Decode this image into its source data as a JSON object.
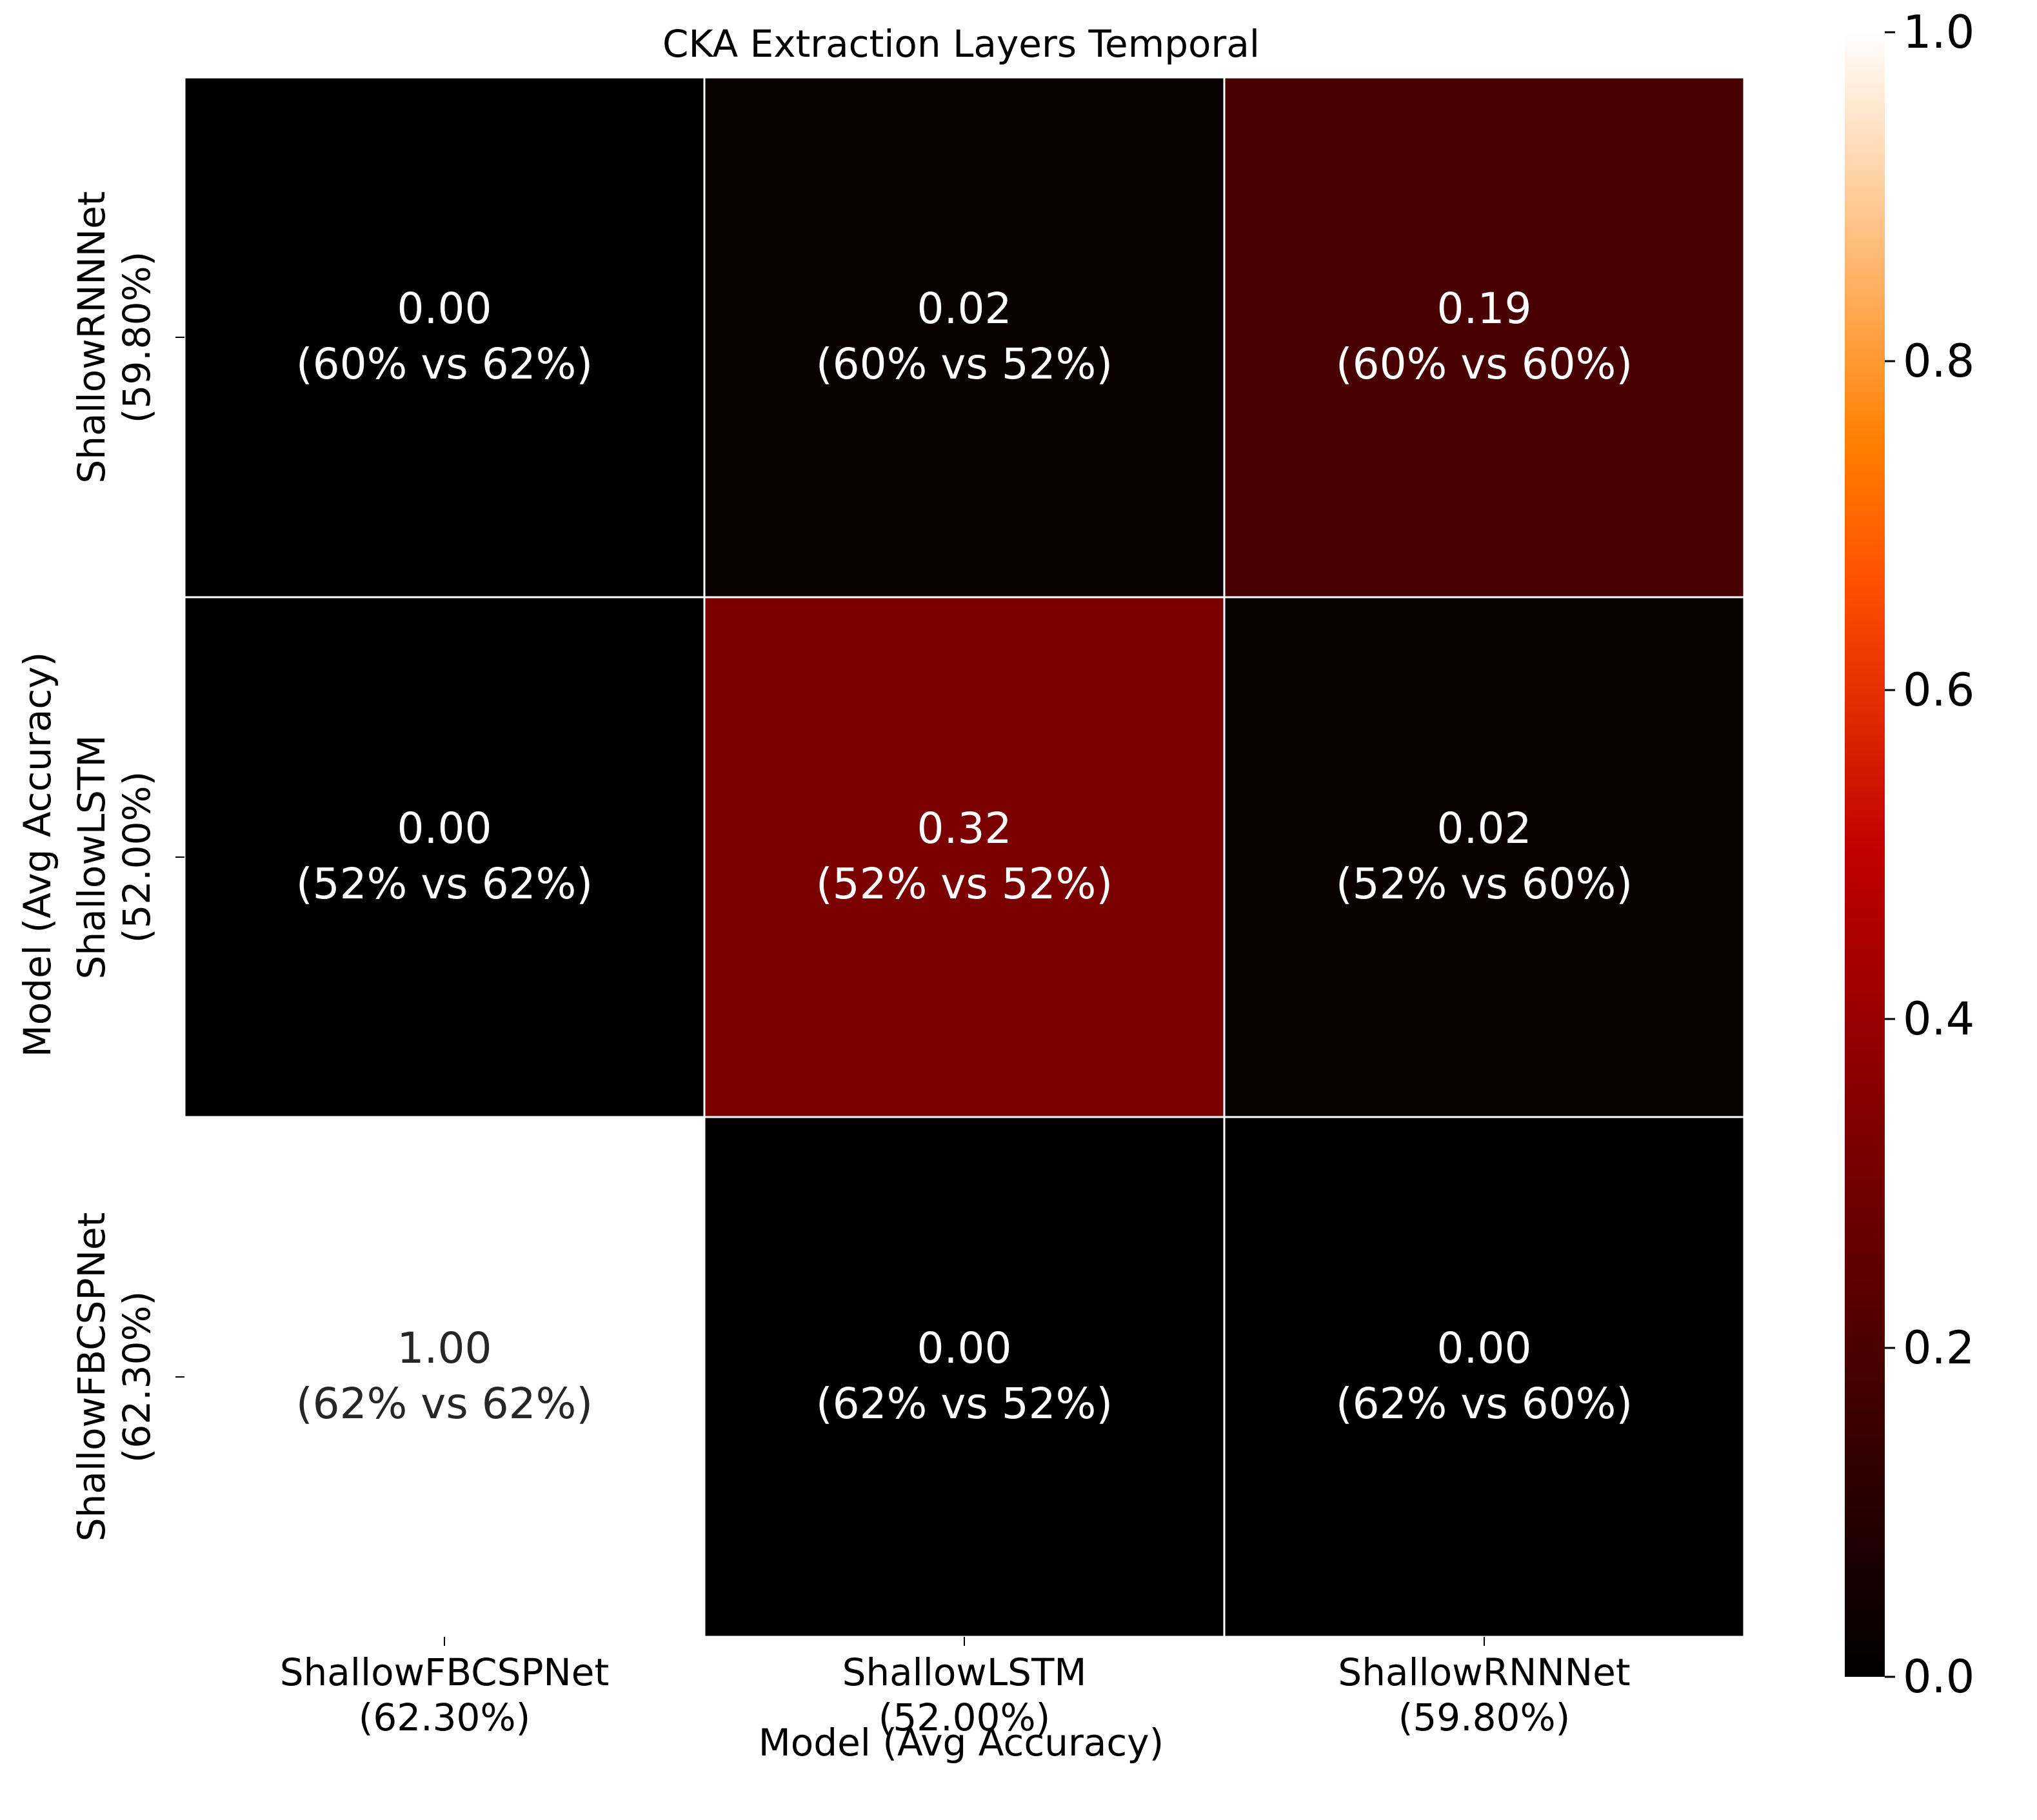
{
  "chart_data": {
    "type": "heatmap",
    "title": "CKA Extraction Layers Temporal",
    "xlabel": "Model (Avg Accuracy)",
    "ylabel": "Model (Avg Accuracy)",
    "x_categories": [
      [
        "ShallowFBCSPNet",
        "(62.30%)"
      ],
      [
        "ShallowLSTM",
        "(52.00%)"
      ],
      [
        "ShallowRNNNet",
        "(59.80%)"
      ]
    ],
    "y_categories": [
      [
        "ShallowRNNNet",
        "(59.80%)"
      ],
      [
        "ShallowLSTM",
        "(52.00%)"
      ],
      [
        "ShallowFBCSPNet",
        "(62.30%)"
      ]
    ],
    "values": [
      [
        0.0,
        0.02,
        0.19
      ],
      [
        0.0,
        0.32,
        0.02
      ],
      [
        1.0,
        0.0,
        0.0
      ]
    ],
    "cell_labels": [
      [
        [
          "0.00",
          "(60% vs 62%)"
        ],
        [
          "0.02",
          "(60% vs 52%)"
        ],
        [
          "0.19",
          "(60% vs 60%)"
        ]
      ],
      [
        [
          "0.00",
          "(52% vs 62%)"
        ],
        [
          "0.32",
          "(52% vs 52%)"
        ],
        [
          "0.02",
          "(52% vs 60%)"
        ]
      ],
      [
        [
          "1.00",
          "(62% vs 62%)"
        ],
        [
          "0.00",
          "(62% vs 52%)"
        ],
        [
          "0.00",
          "(62% vs 60%)"
        ]
      ]
    ],
    "colorbar": {
      "colormap": "gist_heat",
      "range": [
        0.0,
        1.0
      ],
      "ticks": [
        "0.0",
        "0.2",
        "0.4",
        "0.6",
        "0.8",
        "1.0"
      ]
    },
    "grid": false,
    "cell_border_color": "#ffffff"
  }
}
